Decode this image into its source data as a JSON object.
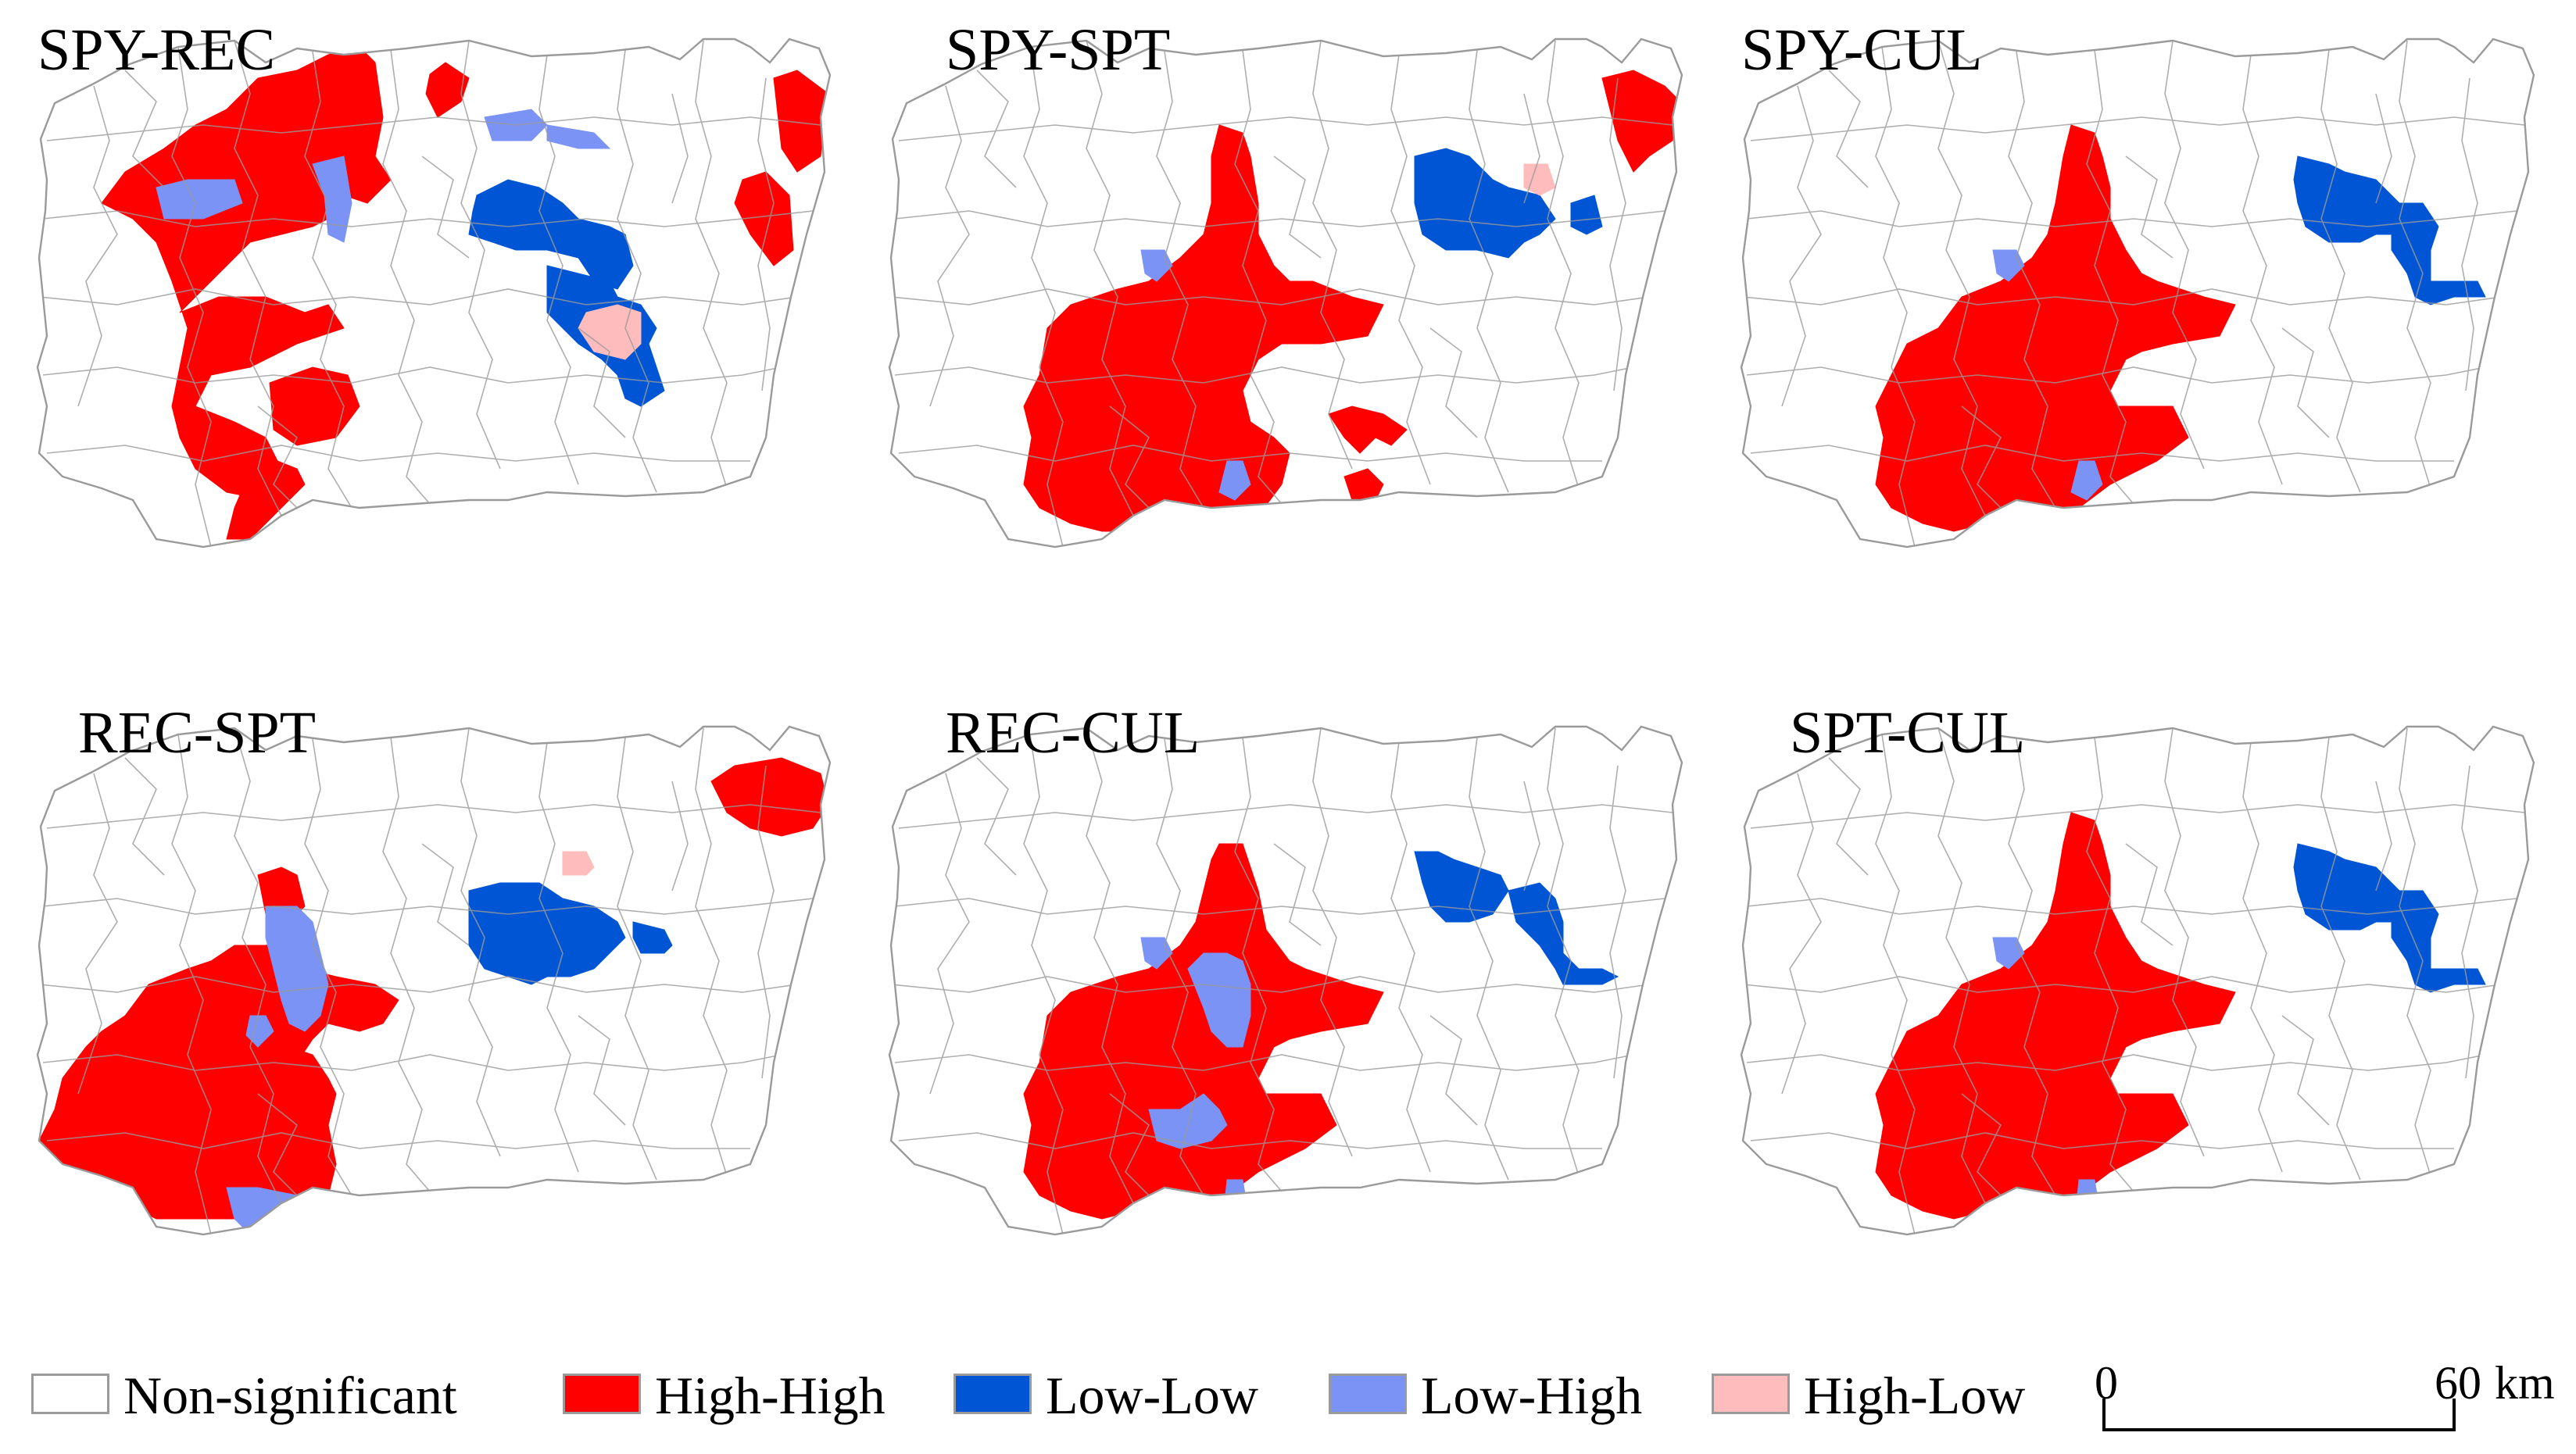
{
  "colors": {
    "non_significant": "#ffffff",
    "high_high": "#ff0000",
    "low_low": "#0055d4",
    "low_high": "#7a93f5",
    "high_low": "#ffbcbc",
    "boundary": "#9a9a9a"
  },
  "panels": [
    {
      "title": "SPY-REC"
    },
    {
      "title": "SPY-SPT"
    },
    {
      "title": "SPY-CUL"
    },
    {
      "title": "REC-SPT"
    },
    {
      "title": "REC-CUL"
    },
    {
      "title": "SPT-CUL"
    }
  ],
  "legend": [
    {
      "label": "Non-significant",
      "class": "non_significant"
    },
    {
      "label": "High-High",
      "class": "high_high"
    },
    {
      "label": "Low-Low",
      "class": "low_low"
    },
    {
      "label": "Low-High",
      "class": "low_high"
    },
    {
      "label": "High-Low",
      "class": "high_low"
    }
  ],
  "scale_bar": {
    "start": "0",
    "end": "60",
    "unit": "km"
  }
}
